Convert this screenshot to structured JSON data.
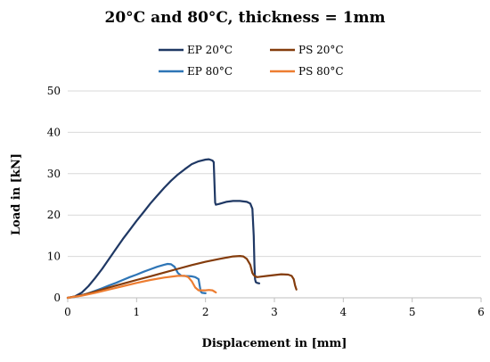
{
  "chart_data": {
    "type": "line",
    "title": "20°C and 80°C, thickness = 1mm",
    "xlabel": "Displacement in [mm]",
    "ylabel": "Load in [kN]",
    "xlim": [
      0,
      6
    ],
    "ylim": [
      0,
      50
    ],
    "xticks": [
      0,
      1,
      2,
      3,
      4,
      5,
      6
    ],
    "yticks": [
      0,
      10,
      20,
      30,
      40,
      50
    ],
    "grid": "horizontal",
    "legend_position": "top",
    "series": [
      {
        "name": "EP 20°C",
        "color": "#1f3864",
        "x": [
          0,
          0.1,
          0.2,
          0.3,
          0.4,
          0.5,
          0.6,
          0.7,
          0.8,
          0.9,
          1.0,
          1.1,
          1.2,
          1.3,
          1.4,
          1.5,
          1.6,
          1.7,
          1.8,
          1.9,
          2.0,
          2.05,
          2.1,
          2.12,
          2.14,
          2.15,
          2.2,
          2.3,
          2.4,
          2.5,
          2.6,
          2.65,
          2.68,
          2.7,
          2.71,
          2.72,
          2.73,
          2.75,
          2.78
        ],
        "y": [
          0,
          0.3,
          1.2,
          2.8,
          4.8,
          7.0,
          9.4,
          11.8,
          14.2,
          16.4,
          18.6,
          20.7,
          22.8,
          24.7,
          26.6,
          28.3,
          29.8,
          31.1,
          32.3,
          33.0,
          33.4,
          33.5,
          33.2,
          32.8,
          23.0,
          22.5,
          22.7,
          23.2,
          23.4,
          23.4,
          23.2,
          22.8,
          21.5,
          15.0,
          8.0,
          4.5,
          3.8,
          3.6,
          3.5
        ]
      },
      {
        "name": "EP 80°C",
        "color": "#2e75b6",
        "x": [
          0,
          0.1,
          0.2,
          0.3,
          0.4,
          0.5,
          0.6,
          0.7,
          0.8,
          0.9,
          1.0,
          1.1,
          1.2,
          1.3,
          1.4,
          1.45,
          1.5,
          1.55,
          1.6,
          1.65,
          1.8,
          1.85,
          1.9,
          1.93,
          1.95,
          2.0
        ],
        "y": [
          0,
          0.2,
          0.6,
          1.1,
          1.7,
          2.3,
          3.0,
          3.6,
          4.3,
          5.0,
          5.6,
          6.3,
          6.9,
          7.5,
          8.0,
          8.2,
          8.1,
          7.5,
          6.0,
          5.3,
          5.2,
          5.0,
          4.5,
          1.5,
          1.2,
          1.1
        ]
      },
      {
        "name": "PS 20°C",
        "color": "#843c0c",
        "x": [
          0,
          0.2,
          0.4,
          0.6,
          0.8,
          1.0,
          1.2,
          1.4,
          1.6,
          1.8,
          2.0,
          2.2,
          2.4,
          2.5,
          2.55,
          2.6,
          2.65,
          2.68,
          2.7,
          2.72,
          2.75,
          2.8,
          2.9,
          3.0,
          3.1,
          3.2,
          3.25,
          3.28,
          3.3,
          3.32
        ],
        "y": [
          0,
          0.6,
          1.5,
          2.5,
          3.4,
          4.3,
          5.2,
          6.1,
          7.0,
          7.9,
          8.7,
          9.4,
          10.0,
          10.1,
          10.0,
          9.4,
          8.0,
          6.0,
          5.5,
          5.2,
          5.0,
          5.1,
          5.3,
          5.5,
          5.7,
          5.6,
          5.3,
          4.5,
          3.0,
          2.0
        ]
      },
      {
        "name": "PS 80°C",
        "color": "#ed7d31",
        "x": [
          0,
          0.2,
          0.4,
          0.6,
          0.8,
          1.0,
          1.2,
          1.4,
          1.6,
          1.7,
          1.75,
          1.8,
          1.85,
          1.9,
          2.0,
          2.05,
          2.1,
          2.13,
          2.15
        ],
        "y": [
          0,
          0.5,
          1.2,
          2.0,
          2.8,
          3.6,
          4.3,
          4.9,
          5.3,
          5.3,
          5.0,
          4.0,
          2.5,
          1.8,
          1.8,
          1.9,
          1.8,
          1.5,
          1.3
        ]
      }
    ]
  }
}
